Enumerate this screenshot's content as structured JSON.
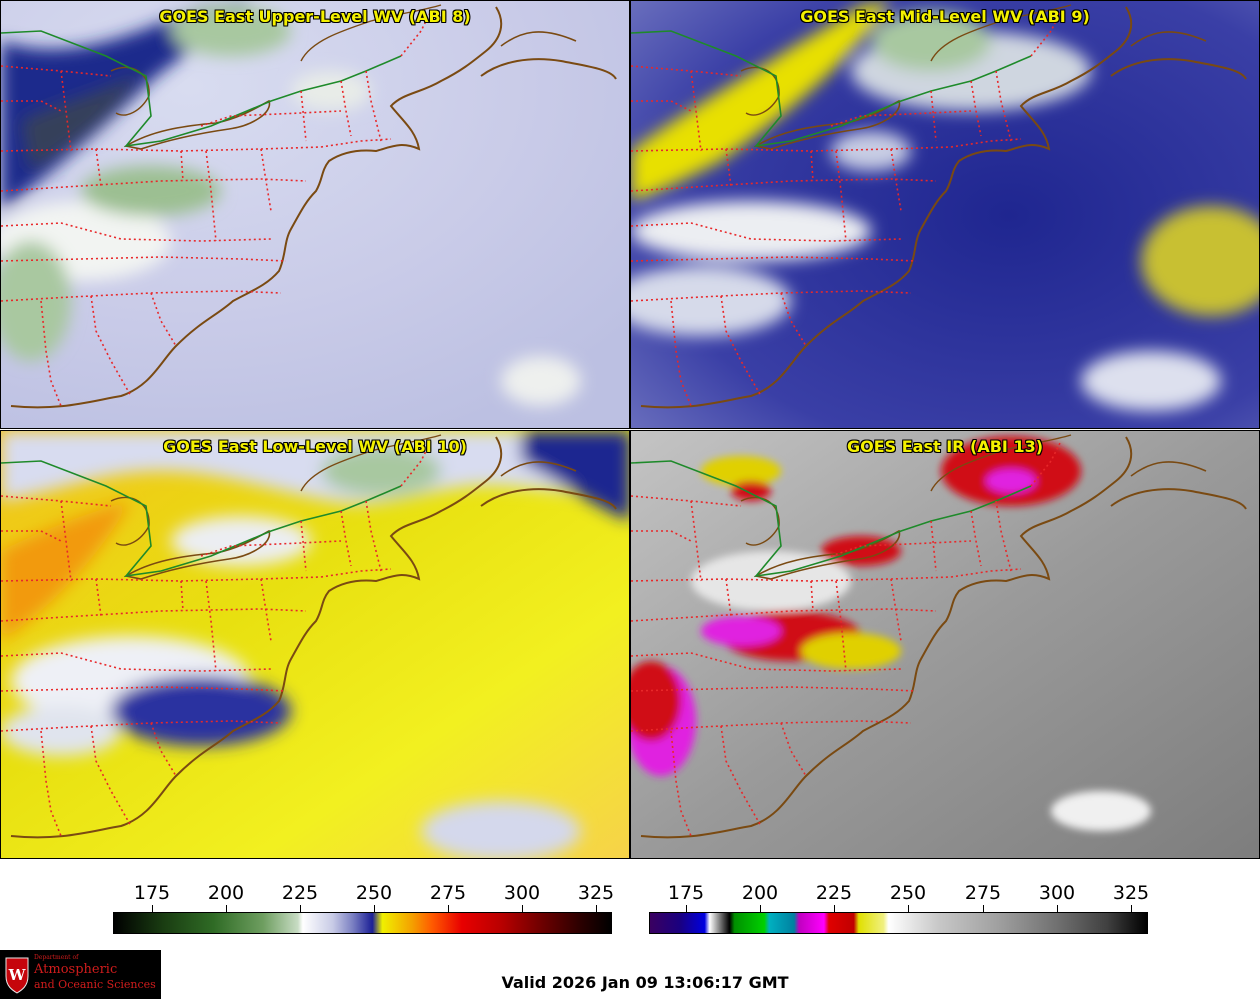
{
  "panels": [
    {
      "title": "GOES East Upper-Level WV (ABI 8)",
      "product": "upper-level-wv"
    },
    {
      "title": "GOES East Mid-Level WV (ABI 9)",
      "product": "mid-level-wv"
    },
    {
      "title": "GOES East Low-Level WV (ABI 10)",
      "product": "low-level-wv"
    },
    {
      "title": "GOES East IR (ABI 13)",
      "product": "ir"
    }
  ],
  "colorbars": [
    {
      "name": "wv-colorbar",
      "ticks": [
        "175",
        "200",
        "225",
        "250",
        "275",
        "300",
        "325"
      ]
    },
    {
      "name": "ir-colorbar",
      "ticks": [
        "175",
        "200",
        "225",
        "250",
        "275",
        "300",
        "325"
      ]
    }
  ],
  "valid_time": "Valid 2026 Jan 09 13:06:17 GMT",
  "logo": {
    "line1": "Department of",
    "line2": "Atmospheric",
    "line3": "and Oceanic Sciences",
    "mark": "W"
  },
  "colors": {
    "title_yellow": "#f4f100",
    "state_lines": "#e8282a",
    "coast_lines": "#7a4a12",
    "border_green": "#1e8a2a"
  }
}
